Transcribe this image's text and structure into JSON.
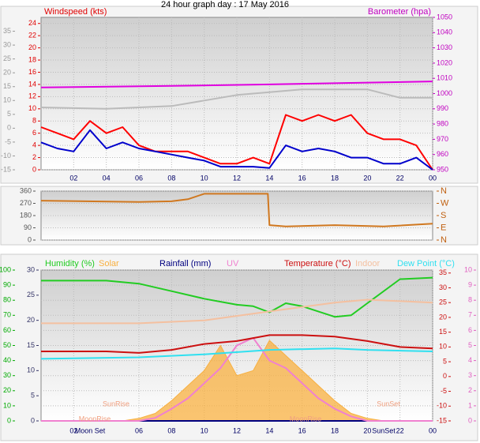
{
  "title": "24 hour graph day : 17 May 2016",
  "chart_data": [
    {
      "type": "line",
      "ylabel": "Windspeed (kts)",
      "y2label": "Barometer (hpa)",
      "xlim": [
        0,
        24
      ],
      "xticks": [
        {
          "value": 2,
          "label": "02"
        },
        {
          "value": 4,
          "label": "04"
        },
        {
          "value": 6,
          "label": "06"
        },
        {
          "value": 8,
          "label": "08"
        },
        10,
        12,
        14,
        16,
        18,
        20,
        22,
        {
          "value": 24,
          "label": "00"
        }
      ],
      "ylim": [
        0,
        25
      ],
      "yticks": [
        0,
        2,
        4,
        6,
        8,
        10,
        12,
        14,
        16,
        18,
        20,
        22,
        24
      ],
      "y2lim": [
        950,
        1050
      ],
      "y2ticks": [
        950,
        960,
        970,
        980,
        990,
        1000,
        1010,
        1020,
        1030,
        1040,
        1050
      ],
      "y3lim": [
        -15,
        40
      ],
      "y3ticks": [
        -15,
        -10,
        -5,
        0,
        5,
        10,
        15,
        20,
        25,
        30,
        35
      ],
      "grid": true,
      "series": [
        {
          "color": "#bbbbbb",
          "axis": "y3",
          "x": [
            0,
            4,
            8,
            10,
            12,
            14,
            16,
            18,
            20,
            22,
            24
          ],
          "values": [
            7.5,
            7,
            8,
            10,
            12,
            13,
            14,
            14,
            14,
            11,
            11
          ]
        },
        {
          "color": "#e000e0",
          "axis": "y2",
          "x": [
            0,
            8,
            14,
            19,
            24
          ],
          "values": [
            1004,
            1005,
            1006,
            1007,
            1008
          ]
        },
        {
          "color": "#ff0000",
          "axis": "y",
          "x": [
            0,
            1,
            2,
            3,
            4,
            5,
            6,
            7,
            8,
            9,
            10,
            11,
            12,
            13,
            14,
            15,
            16,
            17,
            18,
            19,
            20,
            21,
            22,
            23,
            24
          ],
          "values": [
            7,
            6,
            5,
            8,
            6,
            7,
            4,
            3,
            3,
            3,
            2,
            1,
            1,
            2,
            1,
            9,
            8,
            9,
            8,
            9,
            6,
            5,
            5,
            4,
            0
          ]
        },
        {
          "color": "#0000cc",
          "axis": "y",
          "x": [
            0,
            1,
            2,
            3,
            4,
            5,
            6,
            7,
            8,
            9,
            10,
            11,
            12,
            13,
            14,
            15,
            16,
            17,
            18,
            19,
            20,
            21,
            22,
            23,
            24
          ],
          "values": [
            4.5,
            3.5,
            3,
            6.5,
            3.5,
            4.5,
            3.5,
            3,
            2.5,
            2,
            1.5,
            0.5,
            0.5,
            0.5,
            0.3,
            4,
            3,
            3.5,
            3,
            2,
            2,
            1,
            1,
            2,
            0
          ]
        }
      ]
    },
    {
      "type": "line",
      "xlim": [
        0,
        24
      ],
      "ylim": [
        0,
        360
      ],
      "yticks": [
        0,
        90,
        180,
        270,
        360
      ],
      "y2lim": [
        0,
        360
      ],
      "y2ticks": [
        {
          "value": 0,
          "label": "N"
        },
        {
          "value": 90,
          "label": "E"
        },
        {
          "value": 180,
          "label": "S"
        },
        {
          "value": 270,
          "label": "W"
        },
        {
          "value": 360,
          "label": "N"
        }
      ],
      "grid": true,
      "series": [
        {
          "color": "#d07820",
          "axis": "y",
          "x": [
            0,
            6,
            8,
            9,
            10,
            13.9,
            14,
            15,
            18,
            21,
            24
          ],
          "values": [
            290,
            280,
            285,
            300,
            340,
            340,
            110,
            100,
            110,
            100,
            120
          ]
        }
      ]
    },
    {
      "type": "line",
      "xlim": [
        0,
        24
      ],
      "xticks": [
        {
          "value": 2,
          "label": "02"
        },
        {
          "value": 6,
          "label": "06"
        },
        {
          "value": 8,
          "label": "08"
        },
        10,
        12,
        14,
        16,
        18,
        20,
        22,
        {
          "value": 24,
          "label": "00"
        }
      ],
      "x_events": [
        {
          "value": 3,
          "label": "Moon Set"
        },
        {
          "value": 21,
          "label": "SunSet"
        }
      ],
      "annotations": [
        "SunRise",
        "SunSet",
        "MoonRise",
        "MoonRise"
      ],
      "ylim": [
        0,
        100
      ],
      "yticks": [
        0,
        10,
        20,
        30,
        40,
        50,
        60,
        70,
        80,
        90,
        100
      ],
      "y2lim": [
        -15,
        36
      ],
      "y2ticks": [
        -15,
        -10,
        -5,
        0,
        5,
        10,
        15,
        20,
        25,
        30,
        35
      ],
      "y3lim": [
        0,
        30
      ],
      "y3ticks": [
        0,
        5,
        10,
        15,
        20,
        25,
        30
      ],
      "y4lim": [
        0,
        10
      ],
      "y4ticks": [
        0,
        1,
        2,
        3,
        4,
        5,
        6,
        7,
        8,
        9,
        10
      ],
      "grid": true,
      "series": [
        {
          "name": "Humidity (%)",
          "color": "#22cc22",
          "axis": "y",
          "x": [
            0,
            4,
            6,
            8,
            10,
            12,
            13,
            14,
            15,
            16,
            18,
            19,
            20,
            22,
            24
          ],
          "values": [
            93,
            93,
            91,
            86,
            81,
            77,
            76,
            72,
            78,
            76,
            69,
            70,
            78,
            94,
            95
          ]
        },
        {
          "name": "Solar",
          "color": "#f8b040",
          "axis": "y3",
          "area": true,
          "x": [
            0,
            5,
            6,
            7,
            8,
            9,
            10,
            11,
            12,
            13,
            14,
            15,
            16,
            17,
            18,
            19,
            20,
            21,
            24
          ],
          "values": [
            0,
            0,
            0.5,
            1.5,
            4,
            7,
            10,
            15,
            9,
            10,
            16,
            13,
            10,
            7,
            4,
            1.5,
            0.5,
            0,
            0
          ]
        },
        {
          "name": "Rainfall (mm)",
          "color": "#000080",
          "axis": "y3",
          "x": [
            0,
            24
          ],
          "values": [
            0,
            0
          ]
        },
        {
          "name": "UV",
          "color": "#f080d0",
          "axis": "y4",
          "x": [
            0,
            6,
            7,
            8,
            9,
            10,
            11,
            12,
            13,
            14,
            15,
            16,
            17,
            18,
            19,
            20,
            24
          ],
          "values": [
            0,
            0,
            0.2,
            0.8,
            1.5,
            2.5,
            3.5,
            5,
            5.5,
            4,
            3.5,
            2.5,
            1.5,
            0.8,
            0.3,
            0,
            0
          ]
        },
        {
          "name": "Temperature (°C)",
          "color": "#cc1010",
          "axis": "y2",
          "x": [
            0,
            4,
            6,
            8,
            10,
            12,
            14,
            16,
            18,
            20,
            22,
            24
          ],
          "values": [
            8.5,
            8.5,
            8,
            9,
            11,
            12,
            14,
            14,
            13.5,
            12,
            10,
            9.5
          ]
        },
        {
          "name": "Indoor",
          "color": "#f4c0a0",
          "axis": "y2",
          "x": [
            0,
            6,
            10,
            14,
            18,
            20,
            24
          ],
          "values": [
            18,
            18,
            19,
            22,
            25,
            26,
            25
          ]
        },
        {
          "name": "Dew Point (°C)",
          "color": "#30e0f0",
          "axis": "y2",
          "x": [
            0,
            6,
            10,
            14,
            18,
            20,
            24
          ],
          "values": [
            6,
            6.5,
            7.5,
            9,
            9.5,
            9,
            8.5
          ]
        }
      ]
    }
  ]
}
